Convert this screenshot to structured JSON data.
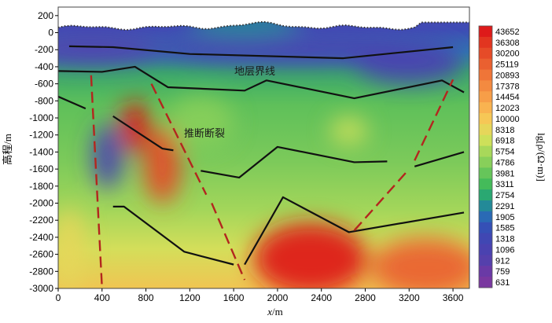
{
  "chart_data": {
    "type": "heatmap",
    "xlabel_var": "x",
    "xlabel_unit": "/m",
    "ylabel": "高程/m",
    "colorbar_label": "lg[ρ/(Ω·m)]",
    "xlim": [
      0,
      3750
    ],
    "ylim": [
      -3000,
      300
    ],
    "xticks": [
      0,
      400,
      800,
      1200,
      1600,
      2000,
      2400,
      2800,
      3200,
      3600
    ],
    "yticks": [
      200,
      0,
      -200,
      -400,
      -600,
      -800,
      -1000,
      -1200,
      -1400,
      -1600,
      -1800,
      -2000,
      -2200,
      -2400,
      -2600,
      -2800,
      -3000
    ],
    "colorbar_ticks": [
      "43652",
      "36308",
      "30200",
      "25119",
      "20893",
      "17378",
      "14454",
      "12023",
      "10000",
      "8318",
      "6918",
      "5754",
      "4786",
      "3981",
      "3311",
      "2754",
      "2291",
      "1905",
      "1585",
      "1318",
      "1096",
      "912",
      "759",
      "631"
    ],
    "colorbar_colors": [
      "#de1a1a",
      "#e23520",
      "#e64b28",
      "#ea6030",
      "#ef7538",
      "#f38a40",
      "#f79e48",
      "#f9b350",
      "#f6c756",
      "#e6d65a",
      "#cde05a",
      "#a8d85a",
      "#88cf5a",
      "#66c55a",
      "#44bb5a",
      "#2aa872",
      "#238a98",
      "#2a6ab5",
      "#3550b6",
      "#4047b3",
      "#4a42b0",
      "#5540ac",
      "#6a3aa6",
      "#7a38a0"
    ],
    "annotations": [
      "地层界线",
      "推断断裂"
    ],
    "stratum_lines": [
      [
        [
          100,
          -160
        ],
        [
          500,
          -170
        ],
        [
          1200,
          -250
        ],
        [
          2600,
          -300
        ],
        [
          3600,
          -170
        ]
      ],
      [
        [
          0,
          -450
        ],
        [
          400,
          -460
        ],
        [
          700,
          -400
        ],
        [
          1000,
          -640
        ],
        [
          1700,
          -680
        ],
        [
          1900,
          -560
        ],
        [
          2700,
          -770
        ],
        [
          3500,
          -560
        ],
        [
          3700,
          -700
        ]
      ],
      [
        [
          0,
          -750
        ],
        [
          250,
          -890
        ]
      ],
      [
        [
          500,
          -980
        ],
        [
          950,
          -1360
        ],
        [
          1050,
          -1380
        ]
      ],
      [
        [
          1300,
          -1620
        ],
        [
          1650,
          -1700
        ],
        [
          2000,
          -1340
        ],
        [
          2700,
          -1520
        ],
        [
          3000,
          -1510
        ]
      ],
      [
        [
          3250,
          -1570
        ],
        [
          3700,
          -1400
        ]
      ],
      [
        [
          500,
          -2040
        ],
        [
          600,
          -2040
        ],
        [
          1150,
          -2570
        ],
        [
          1600,
          -2720
        ]
      ],
      [
        [
          1700,
          -2720
        ],
        [
          2050,
          -1930
        ],
        [
          2650,
          -2340
        ],
        [
          3700,
          -2110
        ]
      ]
    ],
    "faults": [
      [
        [
          300,
          -500
        ],
        [
          400,
          -3000
        ]
      ],
      [
        [
          850,
          -600
        ],
        [
          1350,
          -1900
        ]
      ],
      [
        [
          1400,
          -2000
        ],
        [
          1700,
          -2900
        ]
      ],
      [
        [
          2700,
          -2320
        ],
        [
          3200,
          -1600
        ]
      ],
      [
        [
          3250,
          -1500
        ],
        [
          3600,
          -550
        ]
      ]
    ],
    "anomalies": [
      {
        "x": 700,
        "y": -1100,
        "level": 1.0,
        "rx": 130,
        "ry": 300
      },
      {
        "x": 950,
        "y": -1550,
        "level": 0.9,
        "rx": 170,
        "ry": 450
      },
      {
        "x": 2300,
        "y": -2650,
        "level": 1.0,
        "rx": 520,
        "ry": 420
      },
      {
        "x": 3350,
        "y": -2750,
        "level": 0.85,
        "rx": 500,
        "ry": 340
      },
      {
        "x": 100,
        "y": -2550,
        "level": 0.62,
        "rx": 140,
        "ry": 500
      },
      {
        "x": 2650,
        "y": -1150,
        "level": 0.55,
        "rx": 170,
        "ry": 160
      },
      {
        "x": 450,
        "y": -1450,
        "level": 0.12,
        "rx": 140,
        "ry": 380
      },
      {
        "x": 300,
        "y": -200,
        "level": 0.1,
        "rx": 700,
        "ry": 180
      },
      {
        "x": 2200,
        "y": -200,
        "level": 0.12,
        "rx": 1400,
        "ry": 180
      },
      {
        "x": 3200,
        "y": -350,
        "level": 0.14,
        "rx": 500,
        "ry": 250
      },
      {
        "x": 1700,
        "y": 100,
        "level": 0.32,
        "rx": 500,
        "ry": 160
      },
      {
        "x": 1300,
        "y": -1050,
        "level": 0.48,
        "rx": 300,
        "ry": 300
      }
    ]
  }
}
